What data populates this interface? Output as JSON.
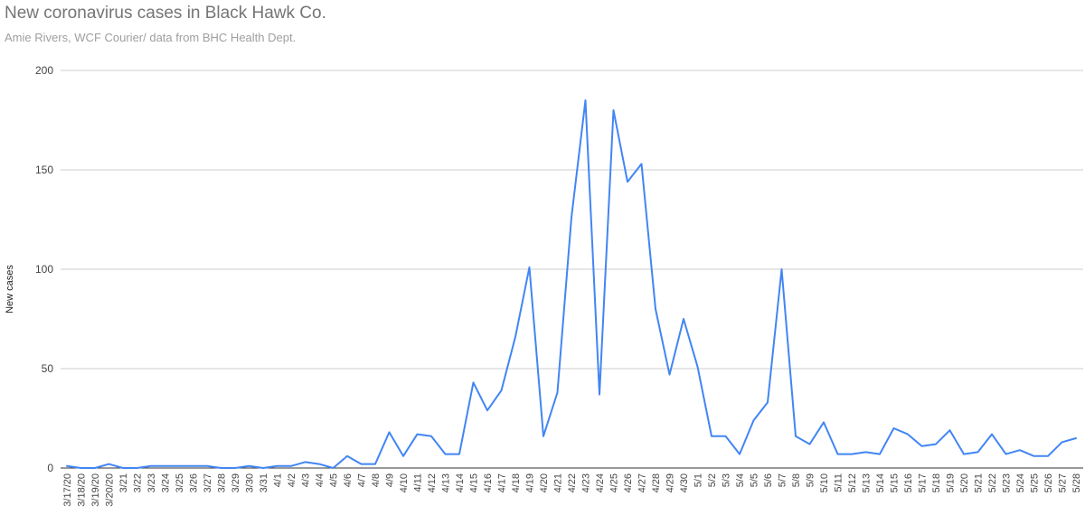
{
  "chart_data": {
    "type": "line",
    "title": "New coronavirus cases in Black Hawk Co.",
    "subtitle": "Amie Rivers, WCF Courier/ data from BHC Health Dept.",
    "xlabel": "",
    "ylabel": "New cases",
    "ylim": [
      0,
      200
    ],
    "yticks": [
      "0",
      "50",
      "100",
      "150",
      "200"
    ],
    "grid": true,
    "line_color": "#4285f4",
    "categories": [
      "3/17/20",
      "3/18/20",
      "3/19/20",
      "3/20/20",
      "3/21",
      "3/22",
      "3/23",
      "3/24",
      "3/25",
      "3/26",
      "3/27",
      "3/28",
      "3/29",
      "3/30",
      "3/31",
      "4/1",
      "4/2",
      "4/3",
      "4/4",
      "4/5",
      "4/6",
      "4/7",
      "4/8",
      "4/9",
      "4/10",
      "4/11",
      "4/12",
      "4/13",
      "4/14",
      "4/15",
      "4/16",
      "4/17",
      "4/18",
      "4/19",
      "4/20",
      "4/21",
      "4/22",
      "4/23",
      "4/24",
      "4/25",
      "4/26",
      "4/27",
      "4/28",
      "4/29",
      "4/30",
      "5/1",
      "5/2",
      "5/3",
      "5/4",
      "5/5",
      "5/6",
      "5/7",
      "5/8",
      "5/9",
      "5/10",
      "5/11",
      "5/12",
      "5/13",
      "5/14",
      "5/15",
      "5/16",
      "5/17",
      "5/18",
      "5/19",
      "5/20",
      "5/21",
      "5/22",
      "5/23",
      "5/24",
      "5/25",
      "5/26",
      "5/27",
      "5/28"
    ],
    "values": [
      1,
      0,
      0,
      2,
      0,
      0,
      1,
      1,
      1,
      1,
      1,
      0,
      0,
      1,
      0,
      1,
      1,
      3,
      2,
      0,
      6,
      2,
      2,
      18,
      6,
      17,
      16,
      7,
      7,
      43,
      29,
      39,
      66,
      101,
      16,
      38,
      126,
      185,
      37,
      180,
      144,
      153,
      80,
      47,
      75,
      51,
      16,
      16,
      7,
      24,
      33,
      100,
      16,
      12,
      23,
      7,
      7,
      8,
      7,
      20,
      17,
      11,
      12,
      19,
      7,
      8,
      17,
      7,
      9,
      6,
      6,
      13,
      15
    ]
  }
}
